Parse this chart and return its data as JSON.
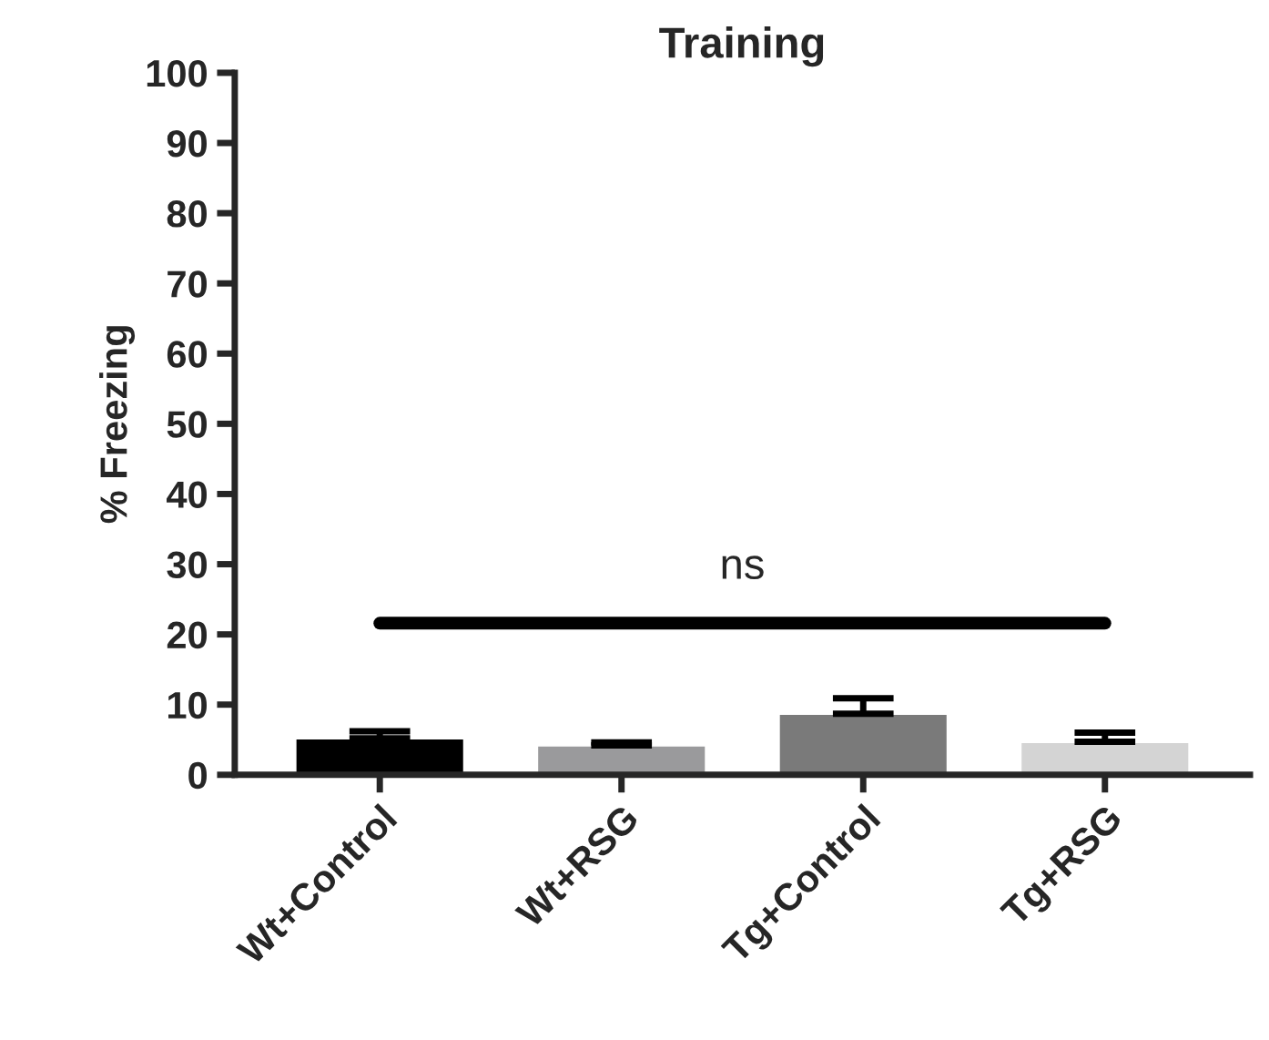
{
  "chart_data": {
    "type": "bar",
    "title": "Training",
    "ylabel": "% Freezing",
    "categories": [
      "Wt+Control",
      "Wt+RSG",
      "Tg+Control",
      "Tg+RSG"
    ],
    "values": [
      5.2,
      4.2,
      8.7,
      4.7
    ],
    "errors": [
      1.0,
      0.4,
      2.2,
      1.3
    ],
    "colors": [
      "#000000",
      "#9a9a9c",
      "#7a7a7a",
      "#d4d4d4"
    ],
    "ylim": [
      0,
      100
    ],
    "yticks": [
      0,
      10,
      20,
      30,
      40,
      50,
      60,
      70,
      80,
      90,
      100
    ],
    "ref_lines": [
      {
        "axis": "y",
        "value": 21.6,
        "label": "ns",
        "color": "#000000"
      }
    ],
    "grid": false,
    "legend": false
  }
}
